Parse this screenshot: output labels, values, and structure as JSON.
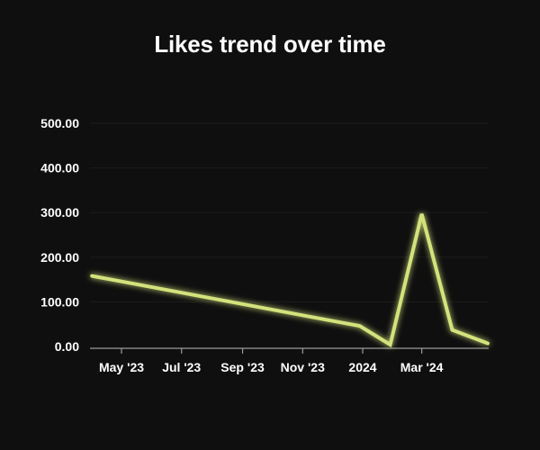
{
  "chart_data": {
    "type": "line",
    "title": "Likes trend over time",
    "xlabel": "",
    "ylabel": "",
    "ylim": [
      0,
      500
    ],
    "yticks": [
      "0.00",
      "100.00",
      "200.00",
      "300.00",
      "400.00",
      "500.00"
    ],
    "xticks": [
      {
        "label": "May '23",
        "date": "2023-05-01"
      },
      {
        "label": "Jul '23",
        "date": "2023-07-01"
      },
      {
        "label": "Sep '23",
        "date": "2023-09-01"
      },
      {
        "label": "Nov '23",
        "date": "2023-11-01"
      },
      {
        "label": "2024",
        "date": "2024-01-01"
      },
      {
        "label": "Mar '24",
        "date": "2024-03-01"
      }
    ],
    "xlim": [
      "2023-03-30",
      "2024-05-08"
    ],
    "grid": true,
    "legend": "none",
    "series": [
      {
        "points": [
          {
            "x": "2023-04-01",
            "y": 158
          },
          {
            "x": "2023-12-29",
            "y": 46
          },
          {
            "x": "2024-01-29",
            "y": 4
          },
          {
            "x": "2024-03-01",
            "y": 297
          },
          {
            "x": "2024-04-01",
            "y": 37
          },
          {
            "x": "2024-05-07",
            "y": 7
          }
        ],
        "color": "#d4e27c"
      }
    ]
  },
  "colors": {
    "background": "#0f0f0f",
    "grid": "#1c1c1c",
    "axis": "#9a9a9a",
    "line": "#d4e27c",
    "text": "#ffffff"
  }
}
